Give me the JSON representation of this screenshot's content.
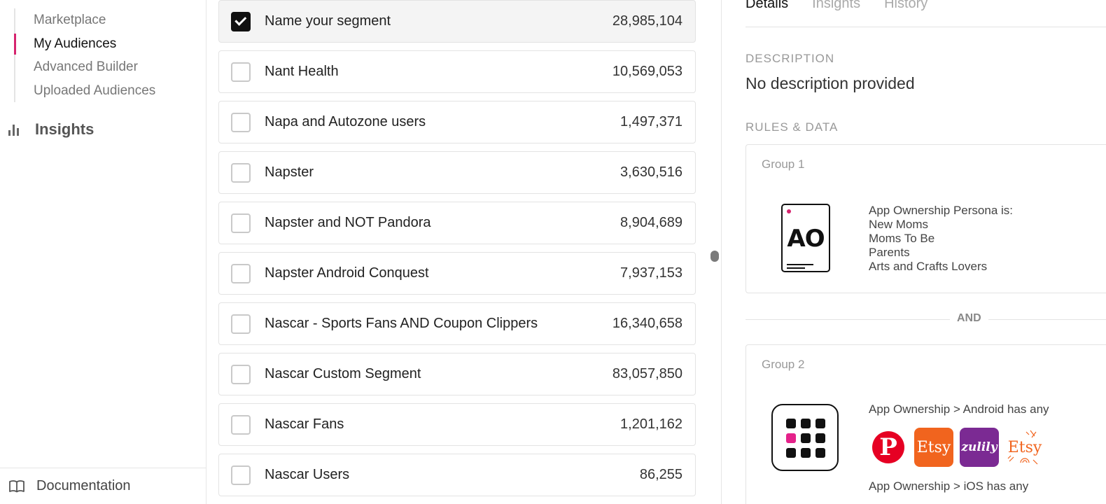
{
  "sidebar": {
    "subnav": [
      {
        "label": "Marketplace",
        "active": false
      },
      {
        "label": "My Audiences",
        "active": true
      },
      {
        "label": "Advanced Builder",
        "active": false
      },
      {
        "label": "Uploaded Audiences",
        "active": false
      }
    ],
    "insights_label": "Insights",
    "documentation_label": "Documentation"
  },
  "segments": [
    {
      "name": "Name your segment",
      "count": "28,985,104",
      "checked": true
    },
    {
      "name": "Nant Health",
      "count": "10,569,053",
      "checked": false
    },
    {
      "name": "Napa and Autozone users",
      "count": "1,497,371",
      "checked": false
    },
    {
      "name": "Napster",
      "count": "3,630,516",
      "checked": false
    },
    {
      "name": "Napster and NOT Pandora",
      "count": "8,904,689",
      "checked": false
    },
    {
      "name": "Napster Android Conquest",
      "count": "7,937,153",
      "checked": false
    },
    {
      "name": "Nascar - Sports Fans AND Coupon Clippers",
      "count": "16,340,658",
      "checked": false
    },
    {
      "name": "Nascar Custom Segment",
      "count": "83,057,850",
      "checked": false
    },
    {
      "name": "Nascar Fans",
      "count": "1,201,162",
      "checked": false
    },
    {
      "name": "Nascar Users",
      "count": "86,255",
      "checked": false
    }
  ],
  "panel": {
    "tabs": [
      {
        "label": "Details",
        "active": true
      },
      {
        "label": "Insights",
        "active": false
      },
      {
        "label": "History",
        "active": false
      }
    ],
    "description_title": "DESCRIPTION",
    "description_text": "No description provided",
    "rules_title": "RULES & DATA",
    "group1": {
      "label": "Group 1",
      "icon_text": "AO",
      "rule_lines": [
        "App Ownership Persona is:",
        "New Moms",
        "Moms To Be",
        "Parents",
        "Arts and Crafts Lovers"
      ]
    },
    "and_label": "AND",
    "group2": {
      "label": "Group 2",
      "android_rule": "App Ownership > Android has any",
      "apps": [
        {
          "name": "pinterest",
          "glyph": "P"
        },
        {
          "name": "etsy",
          "glyph": "Etsy"
        },
        {
          "name": "zulily",
          "glyph": "zulily"
        },
        {
          "name": "etsy-craft",
          "glyph": "Etsy"
        }
      ],
      "ios_rule": "App Ownership > iOS has any"
    }
  },
  "colors": {
    "accent": "#d6246e",
    "pinterest": "#e60023",
    "etsy": "#f1641e",
    "zulily": "#7b2a93"
  }
}
